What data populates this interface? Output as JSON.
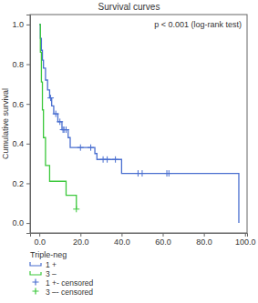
{
  "chart_data": {
    "type": "line",
    "title": "Survival curves",
    "y_label": "Cumulative survival",
    "annotation": "p < 0.001 (log-rank test)",
    "legend_title": "Triple-neg",
    "legend": "bottom",
    "grid": false,
    "xlim": [
      -4.5,
      101
    ],
    "ylim": [
      -0.05,
      1.05
    ],
    "xticks": [
      {
        "value": 0,
        "label": "0.0"
      },
      {
        "value": 20,
        "label": "20.0"
      },
      {
        "value": 40,
        "label": "40.0"
      },
      {
        "value": 60,
        "label": "60.0"
      },
      {
        "value": 80,
        "label": "80.0"
      },
      {
        "value": 100,
        "label": "100.0"
      }
    ],
    "yticks": [
      {
        "value": 0,
        "label": "0.0"
      },
      {
        "value": 0.2,
        "label": "0.2"
      },
      {
        "value": 0.4,
        "label": "0.4"
      },
      {
        "value": 0.6,
        "label": "0.6"
      },
      {
        "value": 0.8,
        "label": "0.8"
      },
      {
        "value": 1,
        "label": "1.0"
      }
    ],
    "series": [
      {
        "name": "1 +",
        "color": "#4a6fd0",
        "type": "line",
        "line_style": "step",
        "x": [
          0,
          0.5,
          1,
          1.5,
          2,
          3,
          4,
          5,
          6,
          7,
          9,
          11,
          14,
          15,
          27,
          28,
          40,
          97
        ],
        "values": [
          1,
          0.93,
          0.87,
          0.82,
          0.78,
          0.72,
          0.67,
          0.63,
          0.59,
          0.55,
          0.51,
          0.47,
          0.43,
          0.38,
          0.35,
          0.32,
          0.25,
          0
        ]
      },
      {
        "name": "3 –",
        "color": "#3cc83c",
        "type": "line",
        "line_style": "step",
        "x": [
          0,
          0.5,
          1,
          1.5,
          2,
          3,
          5,
          13,
          18
        ],
        "values": [
          1,
          0.86,
          0.71,
          0.57,
          0.43,
          0.29,
          0.21,
          0.14,
          0.07
        ]
      },
      {
        "name": "1 +- censored",
        "color": "#4a6fd0",
        "type": "scatter",
        "marker": "plus",
        "x": [
          5.5,
          8,
          10,
          11.5,
          12,
          13,
          20,
          25,
          31,
          33,
          37,
          48,
          50,
          62,
          63
        ],
        "values": [
          0.63,
          0.55,
          0.51,
          0.47,
          0.47,
          0.47,
          0.38,
          0.38,
          0.32,
          0.32,
          0.32,
          0.25,
          0.25,
          0.25,
          0.25
        ]
      },
      {
        "name": "3 –- censored",
        "color": "#3cc83c",
        "type": "scatter",
        "marker": "plus",
        "x": [
          18
        ],
        "values": [
          0.07
        ]
      }
    ]
  }
}
